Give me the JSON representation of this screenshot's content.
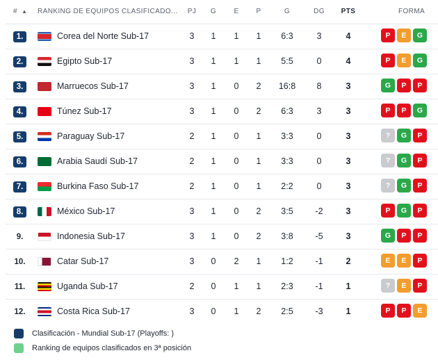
{
  "header": {
    "rank": "#",
    "sort_indicator": "▲",
    "title": "RANKING DE EQUIPOS CLASIFICADO...",
    "pj": "PJ",
    "g": "G",
    "e": "E",
    "p": "P",
    "goals": "G",
    "dg": "DG",
    "pts": "PTS",
    "form": "FORMA"
  },
  "colors": {
    "qualified_badge": "#163d6a",
    "ranking_third": "#6fd08c",
    "loss": "#e2101d",
    "draw": "#f39d2f",
    "win": "#2aa84a",
    "unknown": "#c9cbcf"
  },
  "rows": [
    {
      "rank": "1.",
      "team": "Corea del Norte Sub-17",
      "flag": "north-korea-flag",
      "pj": "3",
      "g": "1",
      "e": "1",
      "p": "1",
      "goals": "6:3",
      "dg": "3",
      "pts": "4",
      "form": [
        "P",
        "E",
        "G"
      ],
      "highlight": true
    },
    {
      "rank": "2.",
      "team": "Egipto Sub-17",
      "flag": "egypt-flag",
      "pj": "3",
      "g": "1",
      "e": "1",
      "p": "1",
      "goals": "5:5",
      "dg": "0",
      "pts": "4",
      "form": [
        "P",
        "E",
        "G"
      ],
      "highlight": true
    },
    {
      "rank": "3.",
      "team": "Marruecos Sub-17",
      "flag": "morocco-flag",
      "pj": "3",
      "g": "1",
      "e": "0",
      "p": "2",
      "goals": "16:8",
      "dg": "8",
      "pts": "3",
      "form": [
        "G",
        "P",
        "P"
      ],
      "highlight": true
    },
    {
      "rank": "4.",
      "team": "Túnez Sub-17",
      "flag": "tunisia-flag",
      "pj": "3",
      "g": "1",
      "e": "0",
      "p": "2",
      "goals": "6:3",
      "dg": "3",
      "pts": "3",
      "form": [
        "P",
        "P",
        "G"
      ],
      "highlight": true
    },
    {
      "rank": "5.",
      "team": "Paraguay Sub-17",
      "flag": "paraguay-flag",
      "pj": "2",
      "g": "1",
      "e": "0",
      "p": "1",
      "goals": "3:3",
      "dg": "0",
      "pts": "3",
      "form": [
        "?",
        "G",
        "P"
      ],
      "highlight": true
    },
    {
      "rank": "6.",
      "team": "Arabia Saudí Sub-17",
      "flag": "saudi-arabia-flag",
      "pj": "2",
      "g": "1",
      "e": "0",
      "p": "1",
      "goals": "3:3",
      "dg": "0",
      "pts": "3",
      "form": [
        "?",
        "G",
        "P"
      ],
      "highlight": true
    },
    {
      "rank": "7.",
      "team": "Burkina Faso Sub-17",
      "flag": "burkina-faso-flag",
      "pj": "2",
      "g": "1",
      "e": "0",
      "p": "1",
      "goals": "2:2",
      "dg": "0",
      "pts": "3",
      "form": [
        "?",
        "G",
        "P"
      ],
      "highlight": true
    },
    {
      "rank": "8.",
      "team": "México Sub-17",
      "flag": "mexico-flag",
      "pj": "3",
      "g": "1",
      "e": "0",
      "p": "2",
      "goals": "3:5",
      "dg": "-2",
      "pts": "3",
      "form": [
        "P",
        "G",
        "P"
      ],
      "highlight": true
    },
    {
      "rank": "9.",
      "team": "Indonesia Sub-17",
      "flag": "indonesia-flag",
      "pj": "3",
      "g": "1",
      "e": "0",
      "p": "2",
      "goals": "3:8",
      "dg": "-5",
      "pts": "3",
      "form": [
        "G",
        "P",
        "P"
      ],
      "highlight": false
    },
    {
      "rank": "10.",
      "team": "Catar Sub-17",
      "flag": "qatar-flag",
      "pj": "3",
      "g": "0",
      "e": "2",
      "p": "1",
      "goals": "1:2",
      "dg": "-1",
      "pts": "2",
      "form": [
        "E",
        "E",
        "P"
      ],
      "highlight": false
    },
    {
      "rank": "11.",
      "team": "Uganda Sub-17",
      "flag": "uganda-flag",
      "pj": "2",
      "g": "0",
      "e": "1",
      "p": "1",
      "goals": "2:3",
      "dg": "-1",
      "pts": "1",
      "form": [
        "?",
        "E",
        "P"
      ],
      "highlight": false
    },
    {
      "rank": "12.",
      "team": "Costa Rica Sub-17",
      "flag": "costa-rica-flag",
      "pj": "3",
      "g": "0",
      "e": "1",
      "p": "2",
      "goals": "2:5",
      "dg": "-3",
      "pts": "1",
      "form": [
        "P",
        "P",
        "E"
      ],
      "highlight": false
    }
  ],
  "legend": [
    {
      "label": "Clasificación - Mundial Sub-17 (Playoffs: )",
      "color": "#163d6a"
    },
    {
      "label": "Ranking de equipos clasificados en 3ª posición",
      "color": "#6fd08c"
    }
  ]
}
